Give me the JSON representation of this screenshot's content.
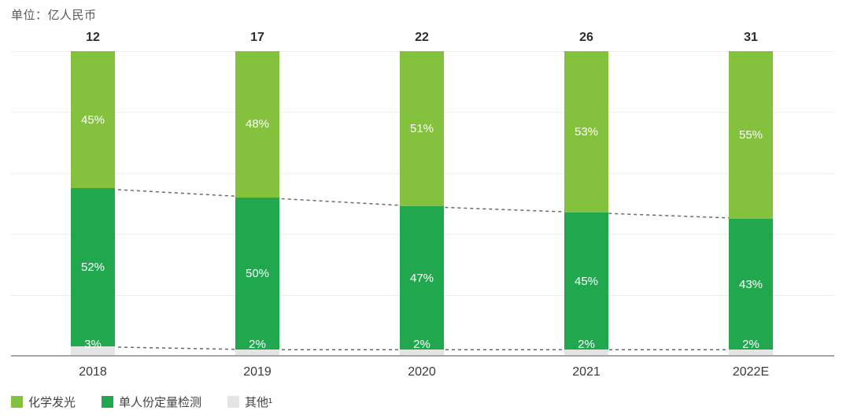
{
  "chart_data": {
    "type": "bar",
    "variant": "stacked-100-percent",
    "unit_label": "单位：亿人民币",
    "categories": [
      "2018",
      "2019",
      "2020",
      "2021",
      "2022E"
    ],
    "totals": [
      "12",
      "17",
      "22",
      "26",
      "31"
    ],
    "series": [
      {
        "name": "化学发光",
        "color": "#84C13C",
        "values": [
          45,
          48,
          51,
          53,
          55
        ]
      },
      {
        "name": "单人份定量检测",
        "color": "#21A84F",
        "values": [
          52,
          50,
          47,
          45,
          43
        ]
      },
      {
        "name": "其他¹",
        "color": "#E4E4E4",
        "values": [
          3,
          2,
          2,
          2,
          2
        ]
      }
    ],
    "value_suffix": "%",
    "ylim": [
      0,
      100
    ],
    "grid": "horizontal",
    "legend_position": "bottom-left",
    "annotations": {
      "dashed_boundary_line_top": "between 化学发光 and 单人份定量检测 segments",
      "dashed_boundary_line_bottom": "along top of 其他 segments",
      "dash_color": "#6a6a6a"
    },
    "axis_color": "#a6a6a6",
    "gridline_color": "#ededed",
    "label_color_inside": "#ffffff"
  }
}
